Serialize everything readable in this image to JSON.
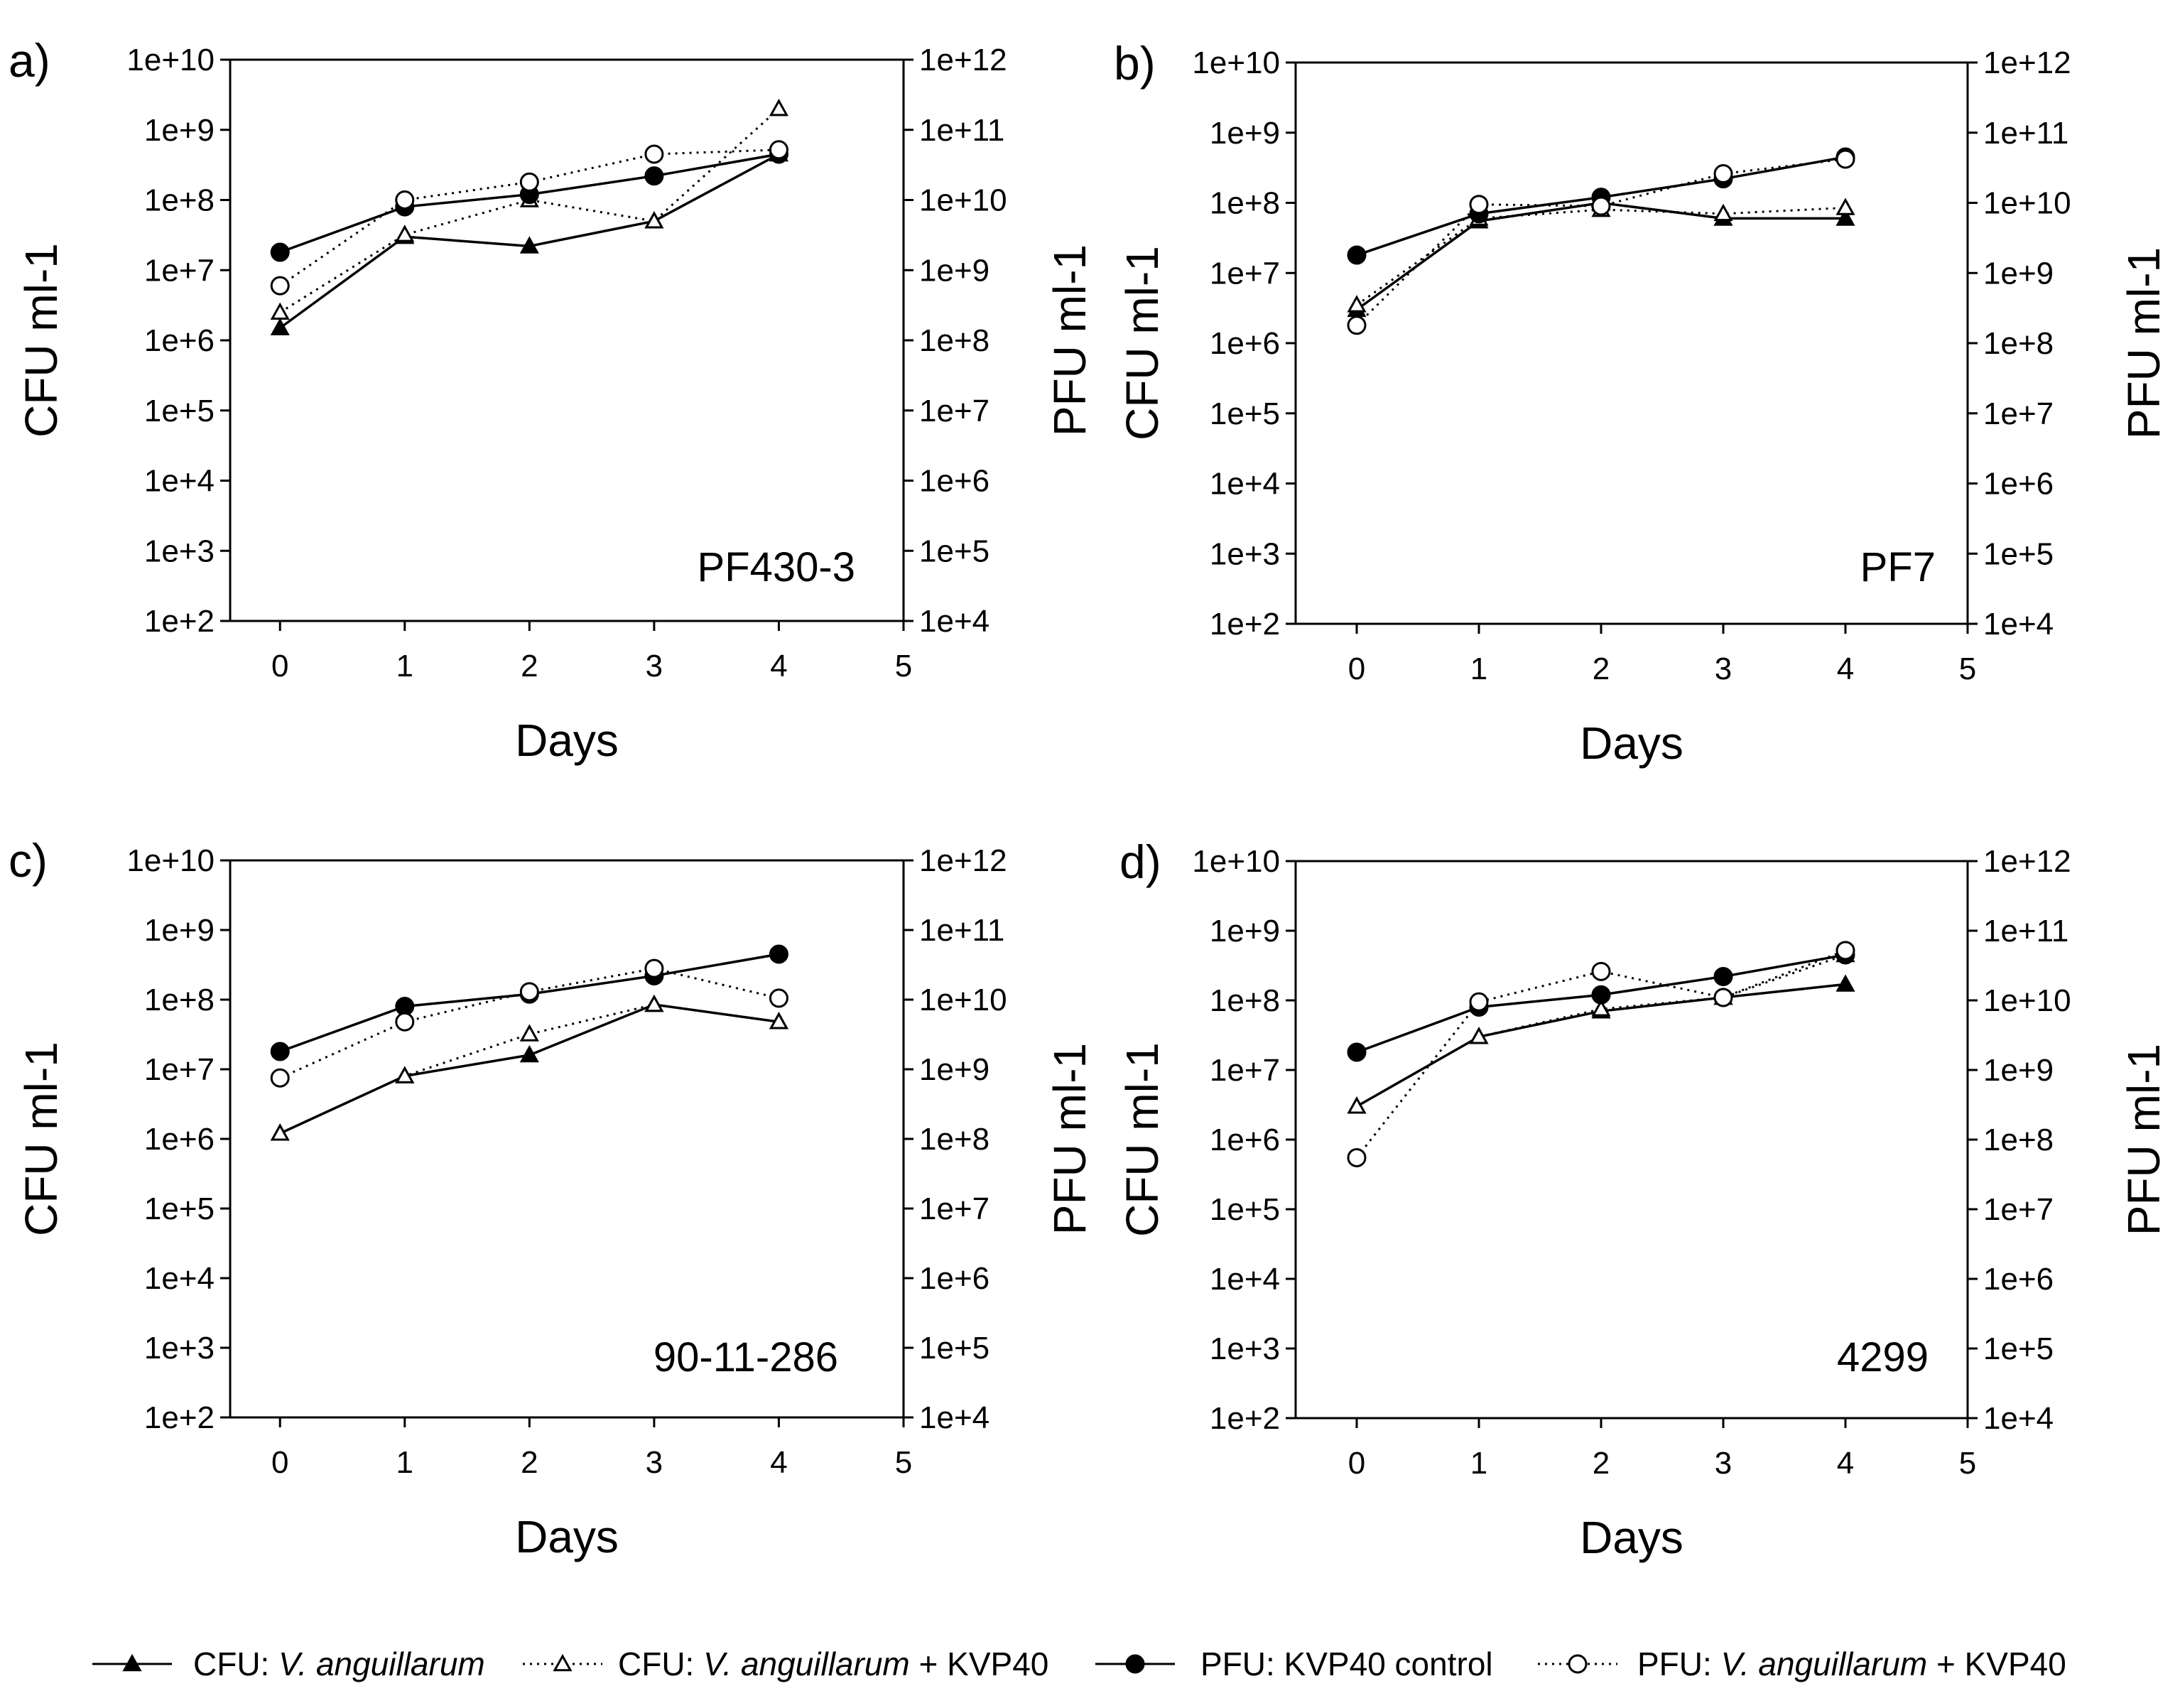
{
  "chart_data": [
    {
      "type": "line",
      "panel_label": "a)",
      "annotation": "PF430-3",
      "xlabel": "Days",
      "ylabel": "CFU ml-1",
      "ylabel_right": "PFU ml-1",
      "xlim": [
        -0.4,
        5
      ],
      "x_ticks": [
        "0",
        "1",
        "2",
        "3",
        "4",
        "5"
      ],
      "ylim_log10": [
        2,
        10
      ],
      "ylim_right_log10": [
        4,
        12
      ],
      "y_tick_labels": [
        "1e+2",
        "1e+3",
        "1e+4",
        "1e+5",
        "1e+6",
        "1e+7",
        "1e+8",
        "1e+9",
        "1e+10"
      ],
      "y_right_tick_labels": [
        "1e+4",
        "1e+5",
        "1e+6",
        "1e+7",
        "1e+8",
        "1e+9",
        "1e+10",
        "1e+11",
        "1e+12"
      ],
      "x": [
        0,
        1,
        2,
        3,
        4
      ],
      "series": [
        {
          "name": "CFU: V. anguillarum",
          "axis": "left",
          "values": [
            1500000,
            30000000,
            22000000,
            50000000,
            450000000
          ]
        },
        {
          "name": "CFU: V. anguillarum + KVP40",
          "axis": "left",
          "values": [
            2500000,
            32000000,
            100000000,
            50000000,
            2000000000
          ]
        },
        {
          "name": "PFU: KVP40 control",
          "axis": "right",
          "values": [
            1800000000,
            8000000000,
            12000000000,
            22000000000,
            45000000000
          ]
        },
        {
          "name": "PFU: V. anguillarum + KVP40",
          "axis": "right",
          "values": [
            600000000,
            10000000000,
            18000000000,
            45000000000,
            52000000000
          ]
        }
      ]
    },
    {
      "type": "line",
      "panel_label": "b)",
      "annotation": "PF7",
      "xlabel": "Days",
      "ylabel": "CFU ml-1",
      "ylabel_right": "PFU ml-1",
      "xlim": [
        -0.5,
        5
      ],
      "x_ticks": [
        "0",
        "1",
        "2",
        "3",
        "4",
        "5"
      ],
      "ylim_log10": [
        2,
        10
      ],
      "ylim_right_log10": [
        4,
        12
      ],
      "y_tick_labels": [
        "1e+2",
        "1e+3",
        "1e+4",
        "1e+5",
        "1e+6",
        "1e+7",
        "1e+8",
        "1e+9",
        "1e+10"
      ],
      "y_right_tick_labels": [
        "1e+4",
        "1e+5",
        "1e+6",
        "1e+7",
        "1e+8",
        "1e+9",
        "1e+10",
        "1e+11",
        "1e+12"
      ],
      "x": [
        0,
        1,
        2,
        3,
        4
      ],
      "series": [
        {
          "name": "CFU: V. anguillarum",
          "axis": "left",
          "values": [
            3000000,
            55000000,
            100000000,
            60000000,
            60000000
          ]
        },
        {
          "name": "CFU: V. anguillarum + KVP40",
          "axis": "left",
          "values": [
            3500000,
            60000000,
            80000000,
            70000000,
            85000000
          ]
        },
        {
          "name": "PFU: KVP40 control",
          "axis": "right",
          "values": [
            1800000000,
            7000000000,
            12000000000,
            22000000000,
            45000000000
          ]
        },
        {
          "name": "PFU: V. anguillarum + KVP40",
          "axis": "right",
          "values": [
            180000000,
            9500000000,
            9000000000,
            26000000000,
            42000000000
          ]
        }
      ]
    },
    {
      "type": "line",
      "panel_label": "c)",
      "annotation": "90-11-286",
      "xlabel": "Days",
      "ylabel": "CFU ml-1",
      "ylabel_right": "PFU ml-1",
      "xlim": [
        -0.4,
        5
      ],
      "x_ticks": [
        "0",
        "1",
        "2",
        "3",
        "4",
        "5"
      ],
      "ylim_log10": [
        2,
        10
      ],
      "ylim_right_log10": [
        4,
        12
      ],
      "y_tick_labels": [
        "1e+2",
        "1e+3",
        "1e+4",
        "1e+5",
        "1e+6",
        "1e+7",
        "1e+8",
        "1e+9",
        "1e+10"
      ],
      "y_right_tick_labels": [
        "1e+4",
        "1e+5",
        "1e+6",
        "1e+7",
        "1e+8",
        "1e+9",
        "1e+10",
        "1e+11",
        "1e+12"
      ],
      "x": [
        0,
        1,
        2,
        3,
        4
      ],
      "series": [
        {
          "name": "CFU: V. anguillarum",
          "axis": "left",
          "values": [
            1200000,
            8000000,
            16000000,
            85000000,
            48000000
          ]
        },
        {
          "name": "CFU: V. anguillarum + KVP40",
          "axis": "left",
          "values": [
            1200000,
            8000000,
            32000000,
            85000000,
            48000000
          ]
        },
        {
          "name": "PFU: KVP40 control",
          "axis": "right",
          "values": [
            1800000000,
            8000000000,
            12000000000,
            22000000000,
            45000000000
          ]
        },
        {
          "name": "PFU: V. anguillarum + KVP40",
          "axis": "right",
          "values": [
            750000000,
            4800000000,
            13000000000,
            28000000000,
            10500000000
          ]
        }
      ]
    },
    {
      "type": "line",
      "panel_label": "d)",
      "annotation": "4299",
      "xlabel": "Days",
      "ylabel": "CFU ml-1",
      "ylabel_right": "PFU ml-1",
      "xlim": [
        -0.5,
        5
      ],
      "x_ticks": [
        "0",
        "1",
        "2",
        "3",
        "4",
        "5"
      ],
      "ylim_log10": [
        2,
        10
      ],
      "ylim_right_log10": [
        4,
        12
      ],
      "y_tick_labels": [
        "1e+2",
        "1e+3",
        "1e+4",
        "1e+5",
        "1e+6",
        "1e+7",
        "1e+8",
        "1e+9",
        "1e+10"
      ],
      "y_right_tick_labels": [
        "1e+4",
        "1e+5",
        "1e+6",
        "1e+7",
        "1e+8",
        "1e+9",
        "1e+10",
        "1e+11",
        "1e+12"
      ],
      "x": [
        0,
        1,
        2,
        3,
        4
      ],
      "series": [
        {
          "name": "CFU: V. anguillarum",
          "axis": "left",
          "values": [
            3000000,
            30000000,
            70000000,
            110000000,
            170000000
          ]
        },
        {
          "name": "CFU: V. anguillarum + KVP40",
          "axis": "left",
          "values": [
            3000000,
            30000000,
            75000000,
            110000000,
            450000000
          ]
        },
        {
          "name": "PFU: KVP40 control",
          "axis": "right",
          "values": [
            1800000000,
            8000000000,
            12000000000,
            22000000000,
            45000000000
          ]
        },
        {
          "name": "PFU: V. anguillarum + KVP40",
          "axis": "right",
          "values": [
            55000000,
            9500000000,
            26000000000,
            11000000000,
            52000000000
          ]
        }
      ]
    }
  ],
  "legend": {
    "items": [
      {
        "prefix": "CFU: ",
        "species": "V. anguillarum",
        "suffix": "",
        "style": "solid",
        "marker": "filled-triangle"
      },
      {
        "prefix": "CFU: ",
        "species": "V. anguillarum",
        "suffix": " + KVP40",
        "style": "dotted",
        "marker": "open-triangle"
      },
      {
        "prefix": "PFU: KVP40 control",
        "species": "",
        "suffix": "",
        "style": "solid",
        "marker": "filled-circle"
      },
      {
        "prefix": "PFU: ",
        "species": "V. anguillarum",
        "suffix": " + KVP40",
        "style": "dotted",
        "marker": "open-circle"
      }
    ]
  }
}
